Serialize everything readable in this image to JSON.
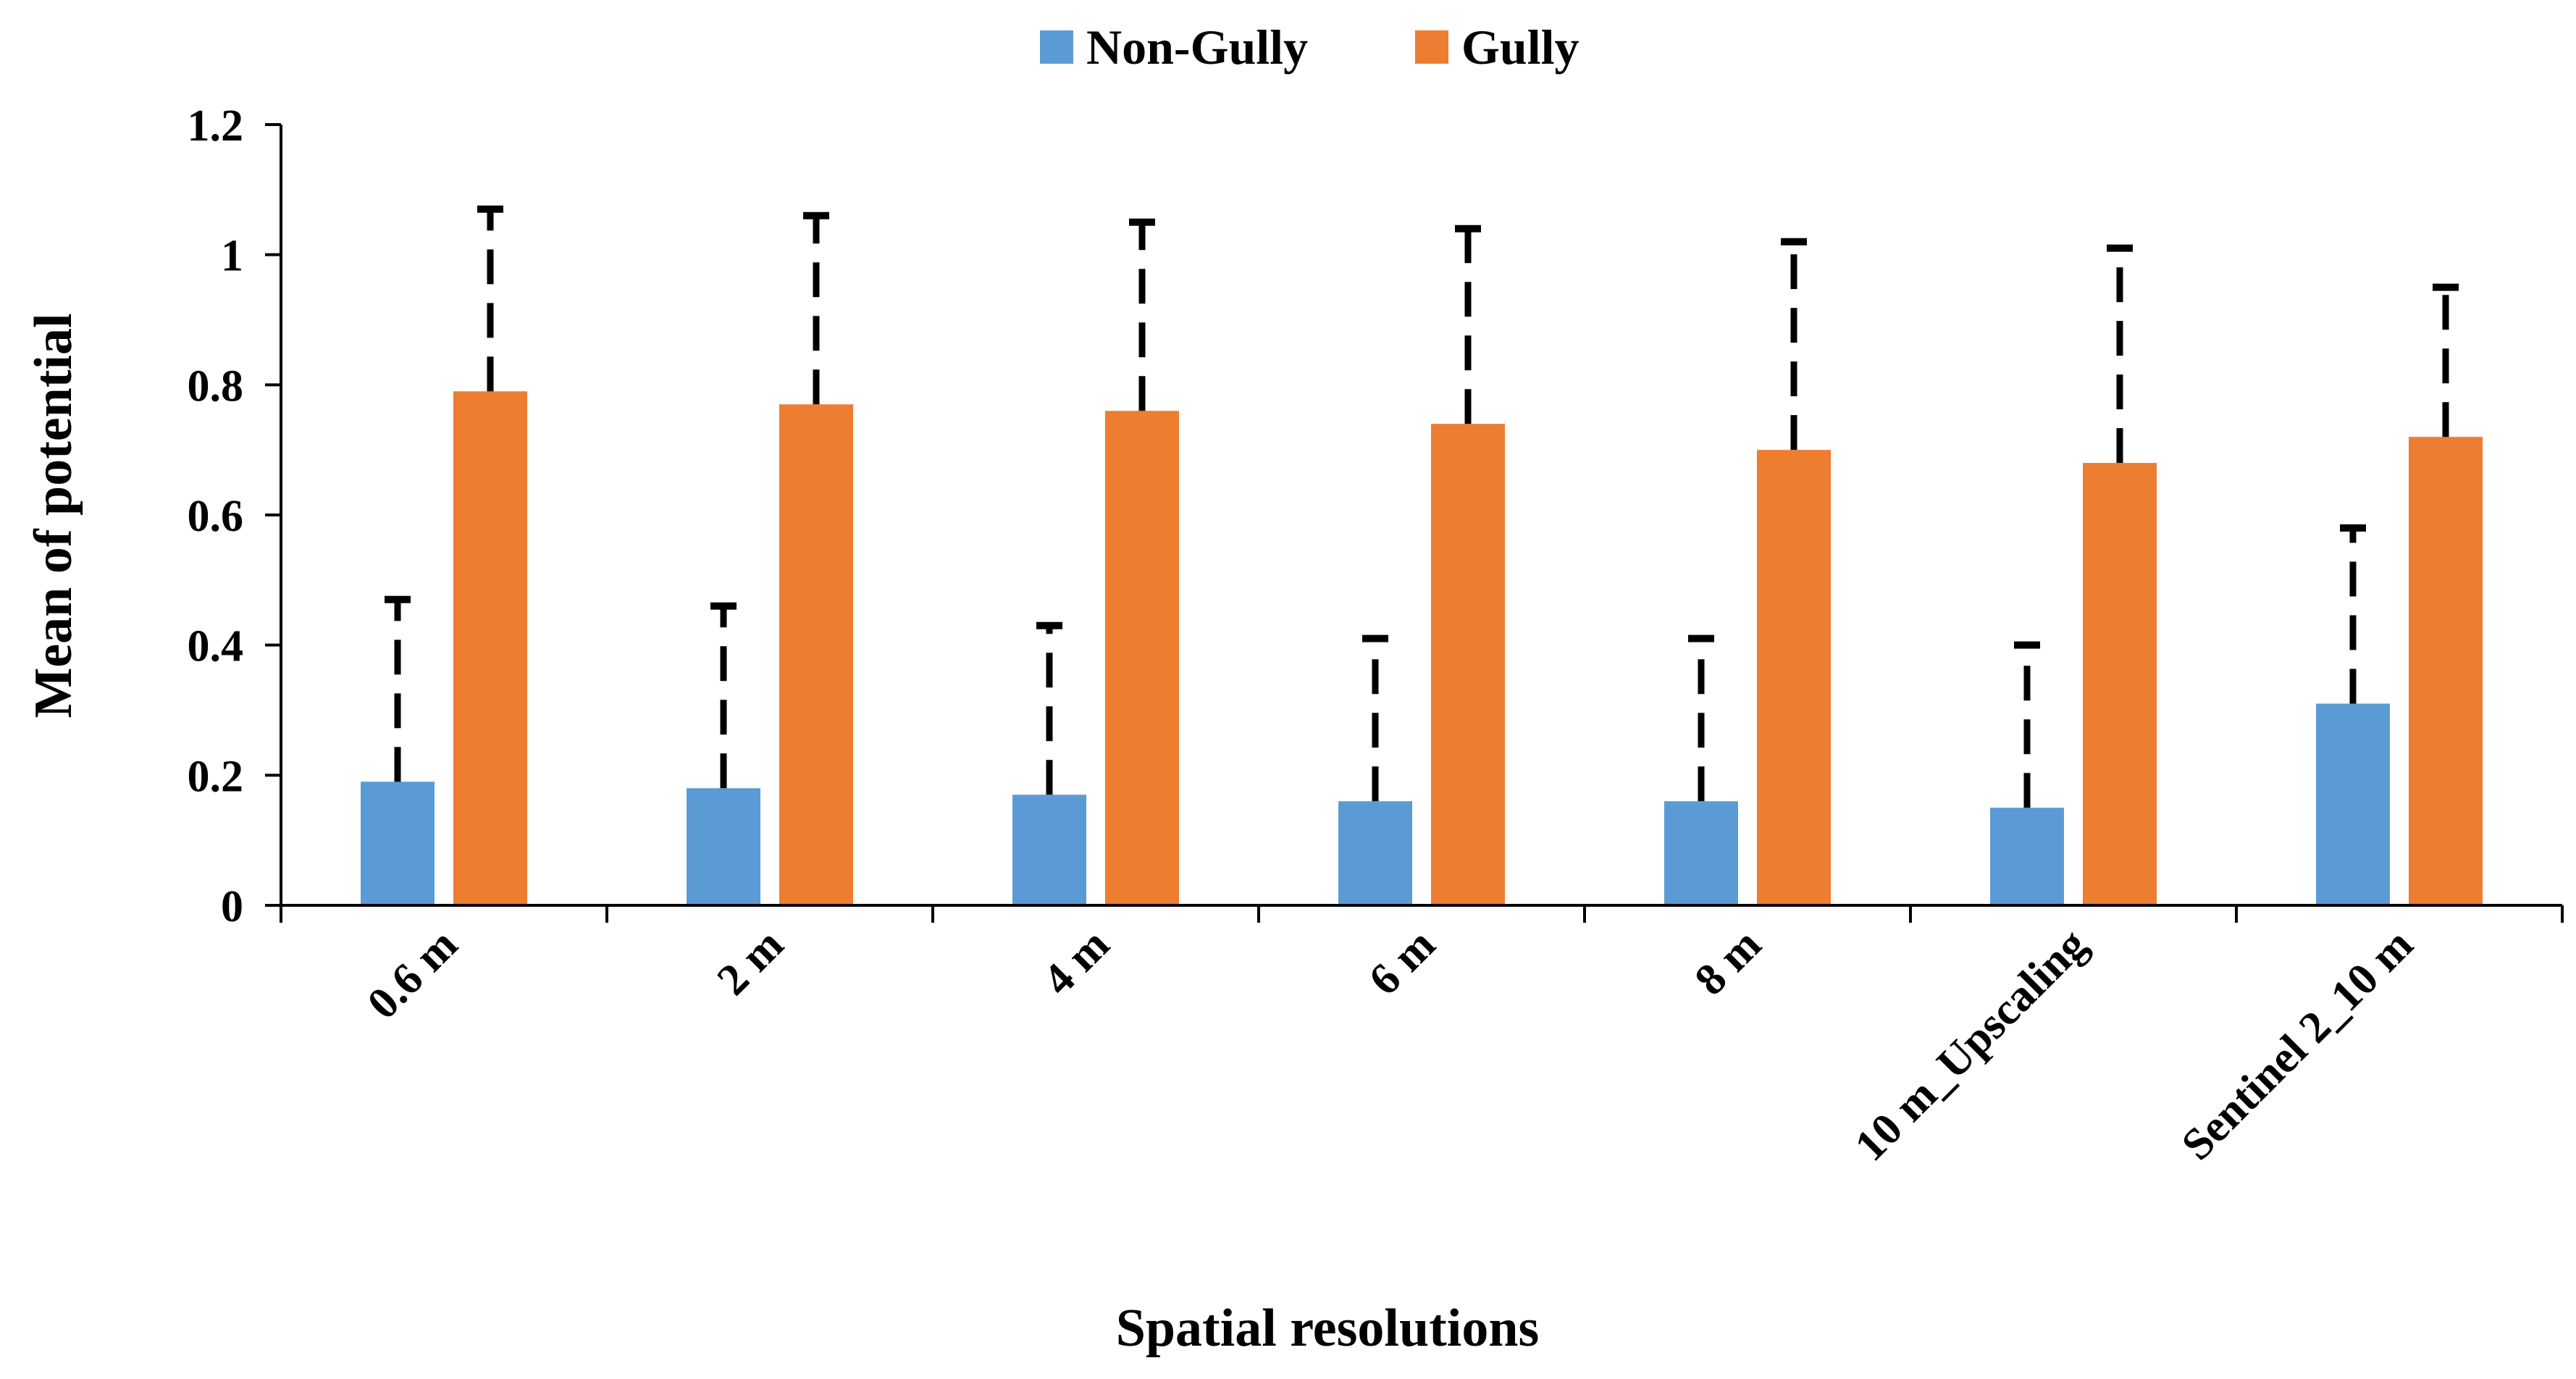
{
  "chart_data": {
    "type": "bar",
    "title": "",
    "xlabel": "Spatial resolutions",
    "ylabel": "Mean of potential",
    "categories": [
      "0.6 m",
      "2 m",
      "4 m",
      "6 m",
      "8 m",
      "10 m_Upscaling",
      "Sentinel 2_10 m"
    ],
    "ylim": [
      0,
      1.2
    ],
    "yticks": [
      "0",
      "0.2",
      "0.4",
      "0.6",
      "0.8",
      "1",
      "1.2"
    ],
    "ytick_values": [
      0,
      0.2,
      0.4,
      0.6,
      0.8,
      1.0,
      1.2
    ],
    "legend_position": "top-center",
    "grid": false,
    "series": [
      {
        "name": "Non-Gully",
        "color": "#5B9BD5",
        "values": [
          0.19,
          0.18,
          0.17,
          0.16,
          0.16,
          0.15,
          0.31
        ],
        "error_upper": [
          0.47,
          0.46,
          0.43,
          0.41,
          0.41,
          0.4,
          0.58
        ]
      },
      {
        "name": "Gully",
        "color": "#ED7D31",
        "values": [
          0.79,
          0.77,
          0.76,
          0.74,
          0.7,
          0.68,
          0.72
        ],
        "error_upper": [
          1.07,
          1.06,
          1.05,
          1.04,
          1.02,
          1.01,
          0.95
        ]
      }
    ],
    "error_bar_style": "dashed"
  }
}
